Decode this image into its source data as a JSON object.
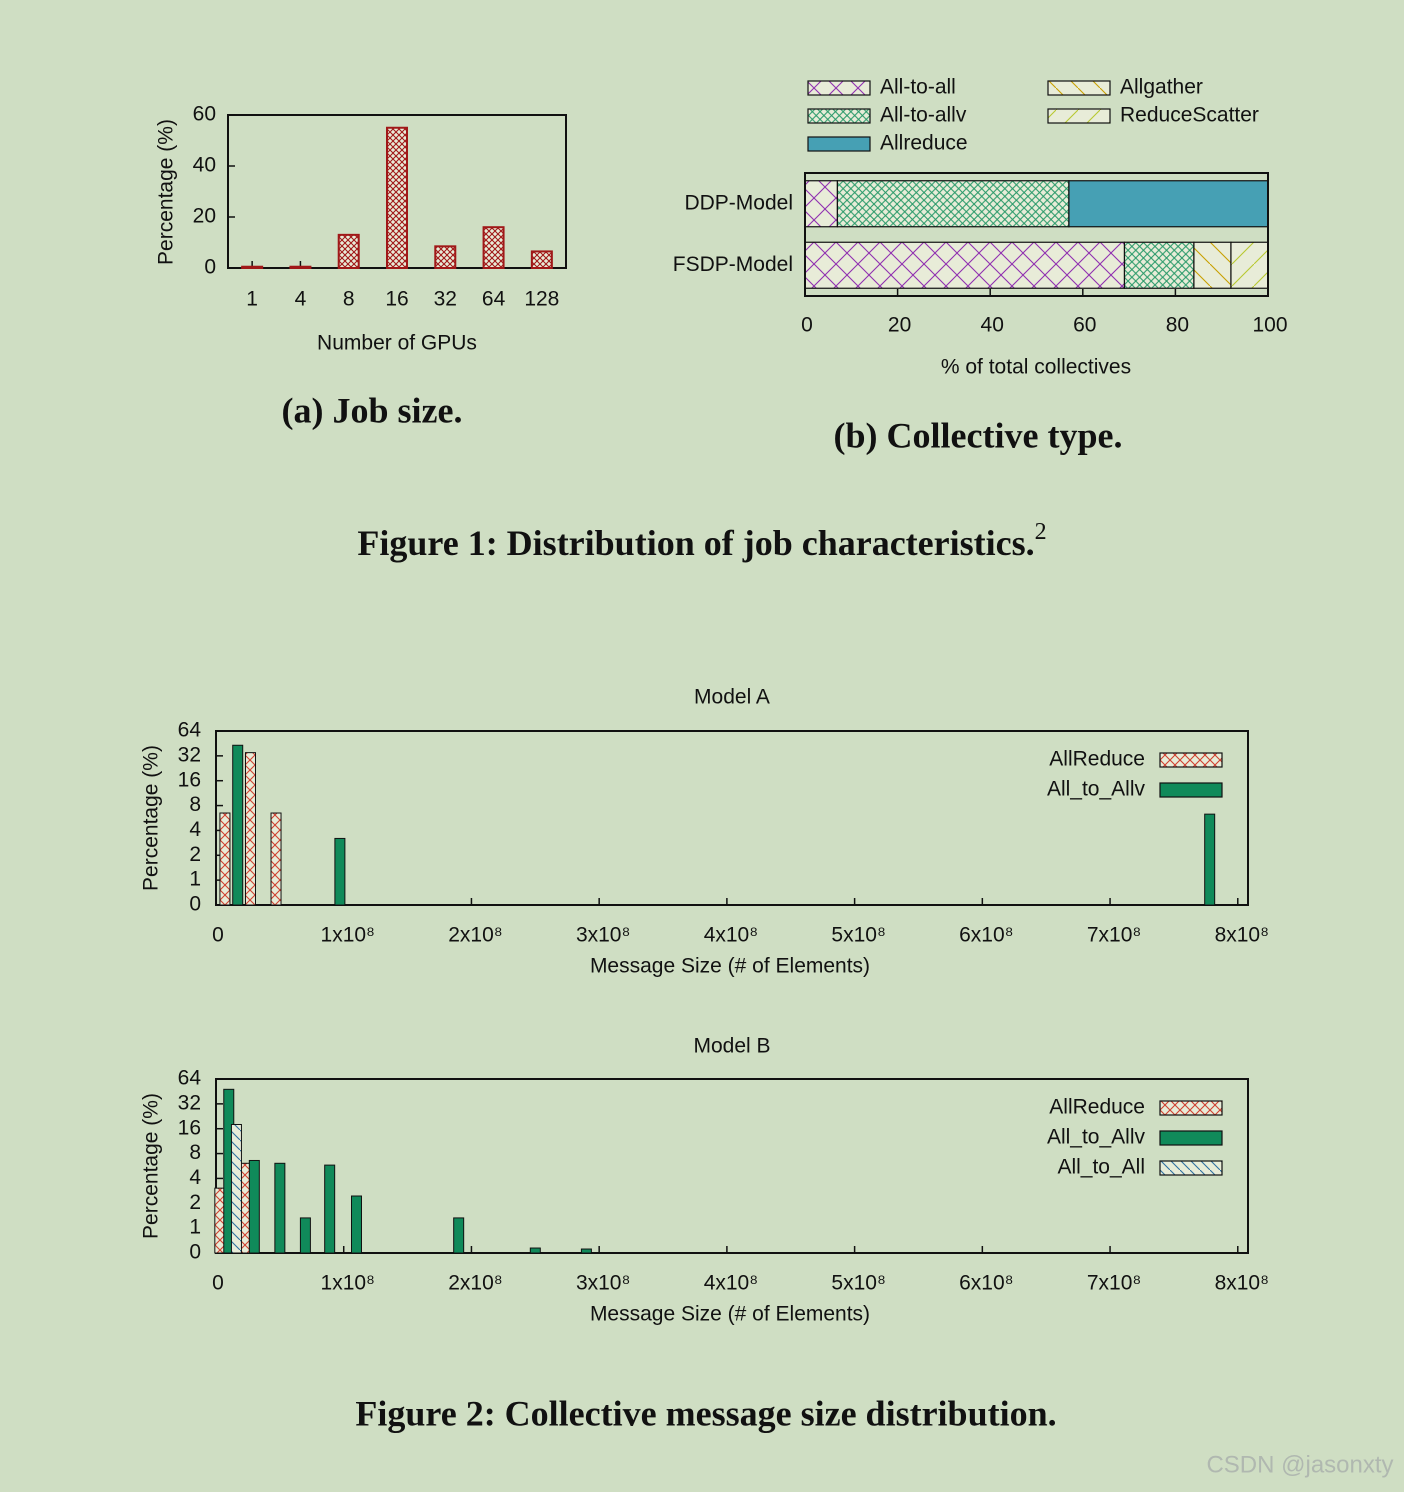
{
  "figure1": {
    "caption": "Figure 1: Distribution of job characteristics.",
    "footnote_mark": "2"
  },
  "figure2": {
    "caption": "Figure 2: Collective message size distribution."
  },
  "watermark": "CSDN @jasonxty",
  "chart_data": [
    {
      "type": "bar",
      "caption": "(a) Job size.",
      "x_label": "Number of GPUs",
      "y_label": "Percentage (%)",
      "categories": [
        "1",
        "4",
        "8",
        "16",
        "32",
        "64",
        "128"
      ],
      "values": [
        0.5,
        0.5,
        13,
        55,
        8.5,
        16,
        6.5
      ],
      "color": "#a01818",
      "hatch": "dense-cross",
      "ylim": [
        0,
        60
      ],
      "yticks": [
        0,
        20,
        40,
        60
      ]
    },
    {
      "type": "stacked-barh",
      "caption": "(b) Collective type.",
      "x_label": "% of total collectives",
      "categories": [
        "DDP-Model",
        "FSDP-Model"
      ],
      "series": [
        {
          "name": "All-to-all",
          "color": "#9030b0",
          "hatch": "cross",
          "values": [
            7,
            69
          ]
        },
        {
          "name": "All-to-allv",
          "color": "#2a9a6a",
          "hatch": "dense-cross",
          "values": [
            50,
            15
          ]
        },
        {
          "name": "Allreduce",
          "color": "#46a0b4",
          "hatch": "solid",
          "values": [
            43,
            0
          ]
        },
        {
          "name": "Allgather",
          "color": "#c8a000",
          "hatch": "back-diagonal",
          "values": [
            0,
            8
          ]
        },
        {
          "name": "ReduceScatter",
          "color": "#b8c830",
          "hatch": "diagonal",
          "values": [
            0,
            8
          ]
        }
      ],
      "legend": "top",
      "xlim": [
        0,
        100
      ],
      "xticks": [
        0,
        20,
        40,
        60,
        80,
        100
      ]
    },
    {
      "type": "bar",
      "title": "Model A",
      "x_label": "Message Size (# of Elements)",
      "y_label": "Percentage (%)",
      "series": [
        {
          "name": "AllReduce",
          "color": "#d04030",
          "hatch": "cross",
          "x": [
            7000000,
            27000000,
            47000000
          ],
          "values": [
            6.5,
            35,
            6.5
          ]
        },
        {
          "name": "All_to_Allv",
          "color": "#108a5a",
          "hatch": "solid",
          "x": [
            17000000,
            97000000,
            778000000
          ],
          "values": [
            43,
            3.2,
            6.3
          ]
        }
      ],
      "legend": "upper right",
      "yscale": "log2",
      "xlim": [
        0,
        808000000
      ],
      "xticks": [
        0,
        {
          "value": 100000000,
          "label": "1x10⁸"
        },
        {
          "value": 200000000,
          "label": "2x10⁸"
        },
        {
          "value": 300000000,
          "label": "3x10⁸"
        },
        {
          "value": 400000000,
          "label": "4x10⁸"
        },
        {
          "value": 500000000,
          "label": "5x10⁸"
        },
        {
          "value": 600000000,
          "label": "6x10⁸"
        },
        {
          "value": 700000000,
          "label": "7x10⁸"
        },
        {
          "value": 800000000,
          "label": "8x10⁸"
        }
      ],
      "ylim": [
        0,
        64
      ],
      "yticks": [
        0,
        1,
        2,
        4,
        8,
        16,
        32,
        64
      ]
    },
    {
      "type": "bar",
      "title": "Model B",
      "x_label": "Message Size (# of Elements)",
      "y_label": "Percentage (%)",
      "series": [
        {
          "name": "AllReduce",
          "color": "#d04030",
          "hatch": "cross",
          "x": [
            3000000,
            23000000
          ],
          "values": [
            3.05,
            6.1
          ]
        },
        {
          "name": "All_to_Allv",
          "color": "#108a5a",
          "hatch": "solid",
          "x": [
            10000000,
            30000000,
            50000000,
            70000000,
            89000000,
            110000000,
            190000000,
            250000000,
            290000000
          ],
          "values": [
            48,
            6.6,
            6.1,
            1.33,
            5.8,
            2.45,
            1.33,
            0.2,
            0.16
          ]
        },
        {
          "name": "All_to_All",
          "color": "#3070a0",
          "hatch": "back-diagonal",
          "x": [
            16000000
          ],
          "values": [
            18
          ]
        }
      ],
      "legend": "upper right",
      "yscale": "log2",
      "xlim": [
        0,
        808000000
      ],
      "xticks": [
        0,
        {
          "value": 100000000,
          "label": "1x10⁸"
        },
        {
          "value": 200000000,
          "label": "2x10⁸"
        },
        {
          "value": 300000000,
          "label": "3x10⁸"
        },
        {
          "value": 400000000,
          "label": "4x10⁸"
        },
        {
          "value": 500000000,
          "label": "5x10⁸"
        },
        {
          "value": 600000000,
          "label": "6x10⁸"
        },
        {
          "value": 700000000,
          "label": "7x10⁸"
        },
        {
          "value": 800000000,
          "label": "8x10⁸"
        }
      ],
      "ylim": [
        0,
        64
      ],
      "yticks": [
        0,
        1,
        2,
        4,
        8,
        16,
        32,
        64
      ]
    }
  ]
}
